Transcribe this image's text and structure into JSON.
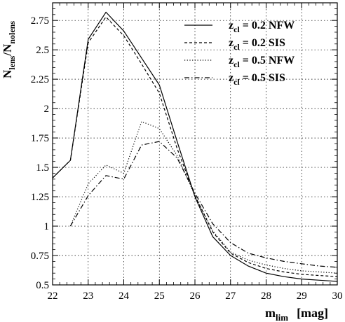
{
  "chart_data": {
    "type": "line",
    "xlabel": {
      "main": "m",
      "sub": "lim",
      "unit": "[mag]"
    },
    "ylabel": {
      "n1": "N",
      "n1_sub": "lens",
      "slash": "/",
      "n2": "N",
      "n2_sub": "nolens"
    },
    "xlim": [
      22,
      30
    ],
    "ylim": [
      0.5,
      2.9
    ],
    "xticks": [
      "22",
      "23",
      "24",
      "25",
      "26",
      "27",
      "28",
      "29",
      "30"
    ],
    "yticks": [
      "0.5",
      "0.75",
      "1",
      "1.25",
      "1.5",
      "1.75",
      "2",
      "2.25",
      "2.5",
      "2.75"
    ],
    "grid": true,
    "legend_position": "top-right",
    "series": [
      {
        "name": "z_cl = 0.2 NFW",
        "legend": {
          "pre": "z",
          "sub": "cl",
          "post": " = 0.2 NFW"
        },
        "style": "solid",
        "x": [
          22,
          22.5,
          23,
          23.5,
          24,
          24.5,
          25,
          25.5,
          26,
          26.5,
          27,
          27.5,
          28,
          28.5,
          29,
          29.5,
          30
        ],
        "y": [
          1.41,
          1.56,
          2.59,
          2.82,
          2.66,
          2.43,
          2.2,
          1.72,
          1.25,
          0.91,
          0.75,
          0.66,
          0.6,
          0.57,
          0.55,
          0.54,
          0.53
        ]
      },
      {
        "name": "z_cl = 0.2 SIS",
        "legend": {
          "pre": "z",
          "sub": "cl",
          "post": " = 0.2 SIS"
        },
        "style": "dashed",
        "x": [
          22,
          22.5,
          23,
          23.5,
          24,
          24.5,
          25,
          25.5,
          26,
          26.5,
          27,
          27.5,
          28,
          28.5,
          29,
          29.5,
          30
        ],
        "y": [
          1.41,
          1.56,
          2.56,
          2.78,
          2.62,
          2.38,
          2.13,
          1.66,
          1.26,
          0.95,
          0.77,
          0.69,
          0.64,
          0.61,
          0.59,
          0.58,
          0.57
        ]
      },
      {
        "name": "z_cl = 0.5 NFW",
        "legend": {
          "pre": "z",
          "sub": "cl",
          "post": " = 0.5 NFW"
        },
        "style": "dotted",
        "x": [
          22.5,
          23,
          23.5,
          24,
          24.5,
          25,
          25.5,
          26,
          26.5,
          27,
          27.5,
          28,
          28.5,
          29,
          29.5,
          30
        ],
        "y": [
          1.0,
          1.36,
          1.52,
          1.45,
          1.89,
          1.83,
          1.6,
          1.26,
          0.96,
          0.78,
          0.71,
          0.67,
          0.64,
          0.62,
          0.61,
          0.6
        ]
      },
      {
        "name": "z_cl = 0.5 SIS",
        "legend": {
          "pre": "z",
          "sub": "cl",
          "post": " = 0.5 SIS"
        },
        "style": "dashdot",
        "x": [
          22.5,
          23,
          23.5,
          24,
          24.5,
          25,
          25.5,
          26,
          26.5,
          27,
          27.5,
          28,
          28.5,
          29,
          29.5,
          30
        ],
        "y": [
          1.0,
          1.26,
          1.43,
          1.4,
          1.69,
          1.72,
          1.58,
          1.28,
          1.02,
          0.86,
          0.77,
          0.73,
          0.7,
          0.68,
          0.66,
          0.65
        ]
      }
    ]
  }
}
